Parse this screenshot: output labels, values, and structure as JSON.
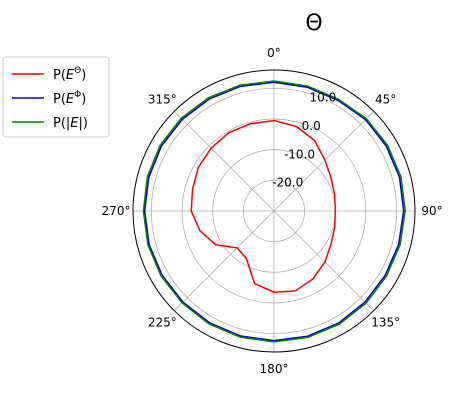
{
  "chart_data": {
    "type": "line",
    "subtype": "polar",
    "title": "Θ",
    "theta_direction": "clockwise",
    "theta_zero_location": "top",
    "theta_tick_labels": [
      "0°",
      "45°",
      "90°",
      "135°",
      "180°",
      "225°",
      "270°",
      "315°"
    ],
    "r_tick_labels": [
      "-20.0",
      "-10.0",
      "0.0",
      "10.0"
    ],
    "r_ticks": [
      -20,
      -10,
      0,
      10
    ],
    "r_range": [
      -30,
      16
    ],
    "r_label_angle_deg": 22.5,
    "grid": true,
    "legend_position": "outside-top-left",
    "theta_deg": [
      0,
      15,
      30,
      45,
      60,
      75,
      90,
      105,
      120,
      135,
      150,
      165,
      180,
      195,
      210,
      225,
      240,
      255,
      270,
      285,
      300,
      315,
      330,
      345,
      360
    ],
    "series": [
      {
        "name": "P($E^{\\Theta}$)",
        "legend_label": {
          "prefix": "P(",
          "base": "E",
          "sup": "Θ",
          "suffix": ")"
        },
        "color": "#ff0000",
        "values": [
          -0.5,
          -1.5,
          -3.5,
          -6.5,
          -8.5,
          -9.5,
          -10,
          -9.5,
          -8.5,
          -6.5,
          -4.5,
          -3,
          -3.5,
          -5.5,
          -12,
          -13,
          -8,
          -5,
          -3,
          -2.5,
          -1.5,
          -1,
          -0.5,
          -0.5,
          -0.5
        ]
      },
      {
        "name": "P($E^{\\Phi}$)",
        "legend_label": {
          "prefix": "P(",
          "base": "E",
          "sup": "Φ",
          "suffix": ")"
        },
        "color": "#0000cc",
        "values": [
          12,
          11.8,
          11.7,
          12.2,
          12.3,
          12.4,
          12.3,
          12.1,
          11.9,
          12,
          12.2,
          12.3,
          12.3,
          12.2,
          12.1,
          12,
          12.1,
          12.2,
          12.2,
          12.3,
          12.4,
          12.3,
          12.2,
          12.1,
          12
        ]
      },
      {
        "name": "P($|E|$)",
        "legend_label": {
          "prefix": "P(",
          "base": "|E|",
          "sup": "",
          "suffix": ")"
        },
        "color": "#008000",
        "values": [
          12.4,
          12.2,
          12.1,
          12.6,
          12.8,
          12.9,
          12.8,
          12.6,
          12.4,
          12.5,
          12.6,
          12.7,
          12.7,
          12.6,
          12.5,
          12.4,
          12.5,
          12.6,
          12.6,
          12.8,
          12.9,
          12.8,
          12.7,
          12.5,
          12.4
        ]
      }
    ]
  }
}
